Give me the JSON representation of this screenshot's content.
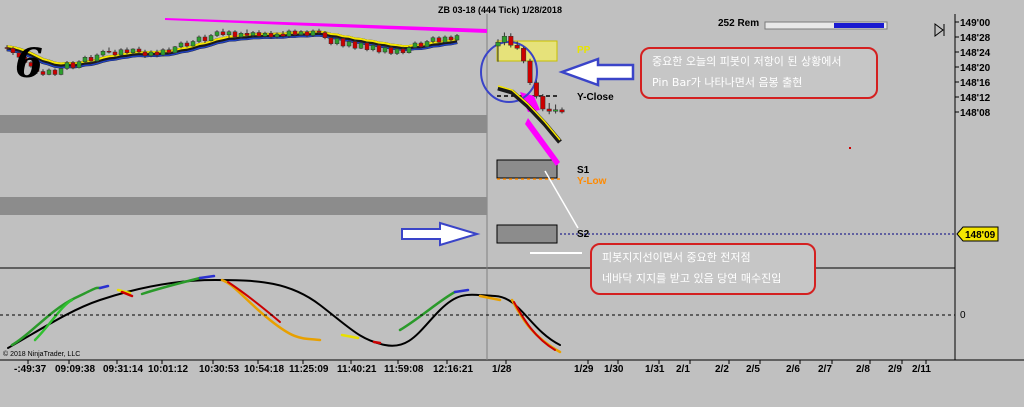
{
  "header": {
    "title": "ZB 03-18 (444 Tick)  1/28/2018",
    "ticks_remaining": "252 Rem",
    "corner_marker": "6",
    "copyright": "© 2018 NinjaTrader, LLC"
  },
  "chart_data": {
    "type": "candlestick",
    "instrument": "ZB 03-18",
    "bar_type": "444 Tick",
    "date": "1/28/2018",
    "price_axis": {
      "ylim": [
        "148'06",
        "149'00"
      ],
      "tick_labels": [
        "149'00",
        "148'28",
        "148'24",
        "148'20",
        "148'16",
        "148'12",
        "148'08"
      ],
      "current_price": "148'09"
    },
    "time_axis": {
      "tick_labels": [
        "-:49:37",
        "09:09:38",
        "09:31:14",
        "10:01:12",
        "10:30:53",
        "10:54:18",
        "11:25:09",
        "11:40:21",
        "11:59:08",
        "12:16:21",
        "1/28",
        "1/29",
        "1/30",
        "1/31",
        "2/1",
        "2/2",
        "2/5",
        "2/6",
        "2/7",
        "2/8",
        "2/9",
        "2/11"
      ]
    },
    "levels": [
      {
        "name": "PP",
        "color": "#e8e400"
      },
      {
        "name": "Y-Close",
        "color": "#000000"
      },
      {
        "name": "S1",
        "color": "#000000"
      },
      {
        "name": "Y-Low",
        "color": "#ff8a00"
      },
      {
        "name": "S2",
        "color": "#000000"
      }
    ],
    "candles_session_prior": [
      {
        "o": 25.2,
        "h": 25.8,
        "l": 24.4,
        "c": 25.0
      },
      {
        "o": 25.0,
        "h": 25.4,
        "l": 23.2,
        "c": 23.8
      },
      {
        "o": 23.8,
        "h": 24.2,
        "l": 22.0,
        "c": 22.6
      },
      {
        "o": 22.6,
        "h": 23.0,
        "l": 20.8,
        "c": 21.2
      },
      {
        "o": 21.2,
        "h": 21.6,
        "l": 19.8,
        "c": 20.2
      },
      {
        "o": 20.2,
        "h": 20.6,
        "l": 18.2,
        "c": 18.8
      },
      {
        "o": 18.8,
        "h": 19.4,
        "l": 17.6,
        "c": 18.0
      },
      {
        "o": 18.0,
        "h": 19.6,
        "l": 17.8,
        "c": 19.2
      },
      {
        "o": 19.2,
        "h": 19.6,
        "l": 17.6,
        "c": 18.0
      },
      {
        "o": 18.0,
        "h": 19.8,
        "l": 17.8,
        "c": 19.6
      },
      {
        "o": 19.6,
        "h": 21.6,
        "l": 19.2,
        "c": 21.2
      },
      {
        "o": 21.2,
        "h": 21.6,
        "l": 19.4,
        "c": 19.8
      },
      {
        "o": 19.8,
        "h": 21.8,
        "l": 19.6,
        "c": 21.4
      },
      {
        "o": 21.4,
        "h": 23.0,
        "l": 21.0,
        "c": 22.6
      },
      {
        "o": 22.6,
        "h": 23.2,
        "l": 21.0,
        "c": 21.6
      },
      {
        "o": 21.6,
        "h": 23.6,
        "l": 21.2,
        "c": 23.2
      },
      {
        "o": 23.2,
        "h": 24.6,
        "l": 22.8,
        "c": 24.2
      },
      {
        "o": 24.2,
        "h": 25.2,
        "l": 23.6,
        "c": 24.0
      },
      {
        "o": 24.0,
        "h": 24.6,
        "l": 22.8,
        "c": 23.2
      },
      {
        "o": 23.2,
        "h": 25.0,
        "l": 23.0,
        "c": 24.6
      },
      {
        "o": 24.6,
        "h": 25.2,
        "l": 23.4,
        "c": 23.8
      },
      {
        "o": 23.8,
        "h": 25.0,
        "l": 23.4,
        "c": 24.8
      },
      {
        "o": 24.8,
        "h": 25.4,
        "l": 23.6,
        "c": 24.0
      },
      {
        "o": 24.0,
        "h": 24.6,
        "l": 22.4,
        "c": 23.0
      },
      {
        "o": 23.0,
        "h": 24.4,
        "l": 22.6,
        "c": 24.0
      },
      {
        "o": 24.0,
        "h": 24.6,
        "l": 22.6,
        "c": 23.2
      },
      {
        "o": 23.2,
        "h": 25.0,
        "l": 22.8,
        "c": 24.6
      },
      {
        "o": 24.6,
        "h": 25.2,
        "l": 23.4,
        "c": 23.8
      },
      {
        "o": 23.8,
        "h": 25.6,
        "l": 23.6,
        "c": 25.4
      },
      {
        "o": 25.4,
        "h": 26.8,
        "l": 25.0,
        "c": 26.4
      },
      {
        "o": 26.4,
        "h": 27.0,
        "l": 25.2,
        "c": 25.6
      },
      {
        "o": 25.6,
        "h": 27.2,
        "l": 25.4,
        "c": 26.8
      },
      {
        "o": 26.8,
        "h": 28.4,
        "l": 26.4,
        "c": 28.0
      },
      {
        "o": 28.0,
        "h": 28.6,
        "l": 26.4,
        "c": 27.0
      },
      {
        "o": 27.0,
        "h": 28.8,
        "l": 26.8,
        "c": 28.4
      },
      {
        "o": 28.4,
        "h": 29.8,
        "l": 28.0,
        "c": 29.4
      },
      {
        "o": 29.4,
        "h": 30.2,
        "l": 28.2,
        "c": 28.6
      },
      {
        "o": 28.6,
        "h": 29.8,
        "l": 27.8,
        "c": 29.4
      },
      {
        "o": 29.4,
        "h": 29.8,
        "l": 27.6,
        "c": 28.0
      },
      {
        "o": 28.0,
        "h": 29.4,
        "l": 27.6,
        "c": 29.0
      },
      {
        "o": 29.0,
        "h": 30.0,
        "l": 28.0,
        "c": 28.4
      },
      {
        "o": 28.4,
        "h": 29.6,
        "l": 28.0,
        "c": 29.2
      },
      {
        "o": 29.2,
        "h": 29.8,
        "l": 27.8,
        "c": 28.2
      },
      {
        "o": 28.2,
        "h": 29.4,
        "l": 27.8,
        "c": 29.0
      },
      {
        "o": 29.0,
        "h": 29.6,
        "l": 27.6,
        "c": 28.0
      },
      {
        "o": 28.0,
        "h": 29.2,
        "l": 27.6,
        "c": 28.8
      },
      {
        "o": 28.8,
        "h": 29.6,
        "l": 27.8,
        "c": 28.2
      },
      {
        "o": 28.2,
        "h": 30.0,
        "l": 27.8,
        "c": 29.6
      },
      {
        "o": 29.6,
        "h": 30.0,
        "l": 28.2,
        "c": 28.6
      },
      {
        "o": 28.6,
        "h": 29.8,
        "l": 28.2,
        "c": 29.4
      },
      {
        "o": 29.4,
        "h": 29.8,
        "l": 28.0,
        "c": 28.4
      },
      {
        "o": 28.4,
        "h": 30.0,
        "l": 28.0,
        "c": 29.6
      },
      {
        "o": 29.6,
        "h": 30.2,
        "l": 28.8,
        "c": 29.2
      },
      {
        "o": 29.2,
        "h": 29.6,
        "l": 27.4,
        "c": 27.8
      },
      {
        "o": 27.8,
        "h": 28.2,
        "l": 25.8,
        "c": 26.2
      },
      {
        "o": 26.2,
        "h": 28.0,
        "l": 25.8,
        "c": 27.6
      },
      {
        "o": 27.6,
        "h": 28.0,
        "l": 25.2,
        "c": 25.6
      },
      {
        "o": 25.6,
        "h": 27.2,
        "l": 25.2,
        "c": 26.8
      },
      {
        "o": 26.8,
        "h": 27.2,
        "l": 24.6,
        "c": 25.0
      },
      {
        "o": 25.0,
        "h": 26.8,
        "l": 24.8,
        "c": 26.4
      },
      {
        "o": 26.4,
        "h": 26.8,
        "l": 24.2,
        "c": 24.6
      },
      {
        "o": 24.6,
        "h": 26.2,
        "l": 24.2,
        "c": 25.8
      },
      {
        "o": 25.8,
        "h": 26.2,
        "l": 23.6,
        "c": 24.0
      },
      {
        "o": 24.0,
        "h": 25.6,
        "l": 23.6,
        "c": 25.2
      },
      {
        "o": 25.2,
        "h": 25.6,
        "l": 23.2,
        "c": 23.6
      },
      {
        "o": 23.6,
        "h": 25.2,
        "l": 23.2,
        "c": 24.8
      },
      {
        "o": 24.8,
        "h": 25.4,
        "l": 23.4,
        "c": 23.8
      },
      {
        "o": 23.8,
        "h": 25.6,
        "l": 23.6,
        "c": 25.2
      },
      {
        "o": 25.2,
        "h": 26.8,
        "l": 25.0,
        "c": 26.4
      },
      {
        "o": 26.4,
        "h": 26.8,
        "l": 25.0,
        "c": 25.4
      },
      {
        "o": 25.4,
        "h": 27.2,
        "l": 25.2,
        "c": 26.8
      },
      {
        "o": 26.8,
        "h": 28.2,
        "l": 26.4,
        "c": 27.8
      },
      {
        "o": 27.8,
        "h": 28.2,
        "l": 26.2,
        "c": 26.6
      },
      {
        "o": 26.6,
        "h": 28.4,
        "l": 26.4,
        "c": 28.0
      },
      {
        "o": 28.0,
        "h": 28.4,
        "l": 26.8,
        "c": 27.2
      },
      {
        "o": 27.2,
        "h": 28.8,
        "l": 27.0,
        "c": 28.4
      }
    ],
    "candles_session_current": [
      {
        "o": 25.6,
        "h": 27.4,
        "l": 21.4,
        "c": 26.6
      },
      {
        "o": 26.6,
        "h": 29.2,
        "l": 25.8,
        "c": 28.2
      },
      {
        "o": 28.2,
        "h": 29.0,
        "l": 25.2,
        "c": 25.8
      },
      {
        "o": 25.8,
        "h": 26.8,
        "l": 24.6,
        "c": 25.0
      },
      {
        "o": 25.0,
        "h": 25.4,
        "l": 21.0,
        "c": 21.6
      },
      {
        "o": 21.6,
        "h": 22.2,
        "l": 15.2,
        "c": 15.8
      },
      {
        "o": 15.8,
        "h": 16.4,
        "l": 11.6,
        "c": 12.2
      },
      {
        "o": 12.2,
        "h": 12.8,
        "l": 8.2,
        "c": 8.8
      },
      {
        "o": 8.8,
        "h": 10.4,
        "l": 7.4,
        "c": 8.2
      },
      {
        "o": 8.2,
        "h": 10.0,
        "l": 7.6,
        "c": 8.6
      },
      {
        "o": 8.6,
        "h": 9.2,
        "l": 7.6,
        "c": 8.0
      }
    ],
    "indicator": {
      "zero_line_label": "0"
    }
  },
  "annotations": [
    {
      "id": "annotation-pivot-resistance",
      "lines": [
        "중요한 오늘의 피봇이 저항이 된 상황에서",
        "Pin Bar가 나타나면서 음봉 출현"
      ]
    },
    {
      "id": "annotation-support",
      "lines": [
        "피봇지지선이면서 중요한 전저점",
        "네바닥 지지를 받고 있음  당연 매수진입"
      ]
    }
  ],
  "colors": {
    "background": "#c0c0c0",
    "up_candle": "#2c9e2c",
    "down_candle": "#cc0000",
    "ema_band": "#1a1a1a",
    "ema_highlight": "#f5e600",
    "trend_line": "#ff00ff",
    "arrow": "#3a44c8",
    "annotation_border": "#d42020",
    "price_tag": "#f4e500"
  }
}
